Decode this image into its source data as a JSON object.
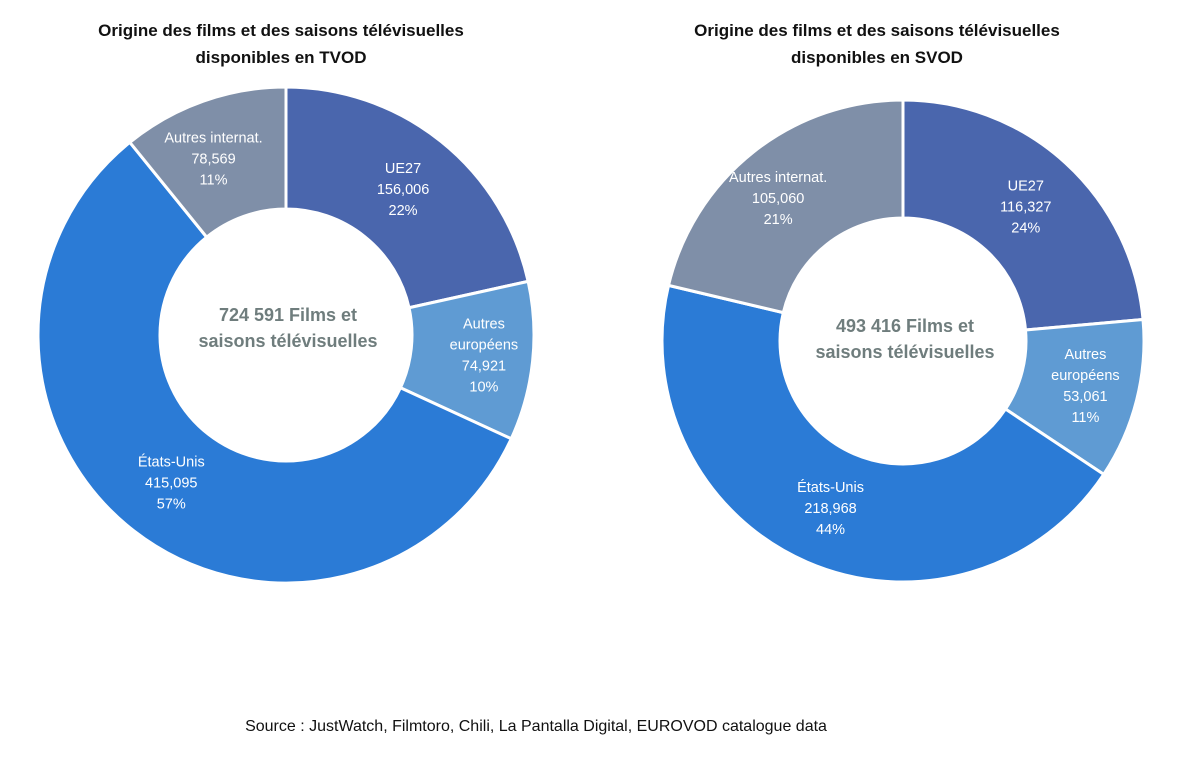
{
  "colors": {
    "ue27": "#4a66ad",
    "autres_europeens": "#5f9bd3",
    "etats_unis": "#2b7bd6",
    "autres_internat": "#7f8fa8",
    "separator": "#ffffff",
    "center_text": "#6f7d7d"
  },
  "source": "Source : JustWatch, Filmtoro, Chili, La Pantalla Digital, EUROVOD catalogue data",
  "chart_data": [
    {
      "type": "pie",
      "donut": true,
      "title_lines": [
        "Origine des films et des saisons télévisuelles",
        "disponibles en TVOD"
      ],
      "center_lines": [
        "724 591 Films et",
        "saisons télévisuelles"
      ],
      "slices": [
        {
          "label": "UE27",
          "value": 156006,
          "value_label": "156,006",
          "percent_label": "22%",
          "color_key": "ue27"
        },
        {
          "label_lines": [
            "Autres",
            "européens"
          ],
          "value": 74921,
          "value_label": "74,921",
          "percent_label": "10%",
          "color_key": "autres_europeens"
        },
        {
          "label": "États-Unis",
          "value": 415095,
          "value_label": "415,095",
          "percent_label": "57%",
          "color_key": "etats_unis"
        },
        {
          "label": "Autres internat.",
          "value": 78569,
          "value_label": "78,569",
          "percent_label": "11%",
          "color_key": "autres_internat"
        }
      ]
    },
    {
      "type": "pie",
      "donut": true,
      "title_lines": [
        "Origine des films et des saisons télévisuelles",
        "disponibles en SVOD"
      ],
      "center_lines": [
        "493 416 Films et",
        "saisons télévisuelles"
      ],
      "slices": [
        {
          "label": "UE27",
          "value": 116327,
          "value_label": "116,327",
          "percent_label": "24%",
          "color_key": "ue27"
        },
        {
          "label_lines": [
            "Autres",
            "européens"
          ],
          "value": 53061,
          "value_label": "53,061",
          "percent_label": "11%",
          "color_key": "autres_europeens"
        },
        {
          "label": "États-Unis",
          "value": 218968,
          "value_label": "218,968",
          "percent_label": "44%",
          "color_key": "etats_unis"
        },
        {
          "label": "Autres internat.",
          "value": 105060,
          "value_label": "105,060",
          "percent_label": "21%",
          "color_key": "autres_internat"
        }
      ]
    }
  ]
}
